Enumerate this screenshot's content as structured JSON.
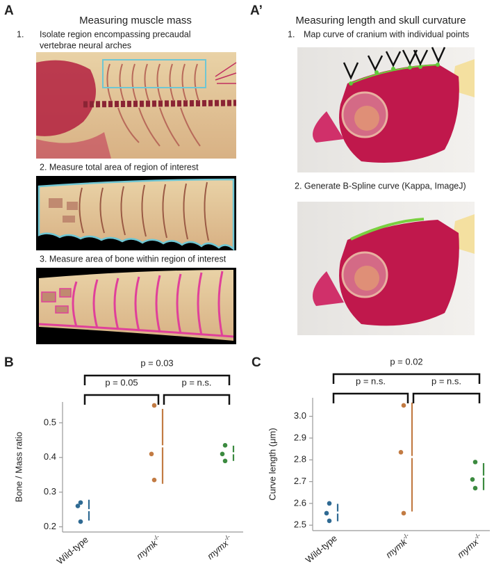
{
  "panels": [
    {
      "label": "A",
      "title": "Measuring muscle mass",
      "steps": [
        {
          "number": "1.",
          "lines": [
            "Isolate region encompassing precaudal",
            "vertebrae neural arches"
          ]
        },
        {
          "lines": [
            "2. Measure total area of region of interest"
          ]
        },
        {
          "lines": [
            "3. Measure area of bone within region of interest"
          ]
        }
      ]
    },
    {
      "label": "A’",
      "title": "Measuring length and skull curvature",
      "steps": [
        {
          "number": "1.",
          "lines": [
            "Map curve of cranium with individual points"
          ]
        },
        {
          "lines": [
            "2. Generate B-Spline curve (Kappa, ImageJ)"
          ]
        }
      ]
    },
    {
      "label": "B"
    },
    {
      "label": "C"
    }
  ],
  "chart_data": [
    {
      "type": "dot",
      "ylabel": "Bone / Mass ratio",
      "categories": [
        "Wild-type",
        "mymk",
        "mymx"
      ],
      "superscripts": {
        "1": "-/-",
        "2": "-/-"
      },
      "colors": [
        "#2f6a93",
        "#c27b43",
        "#3b8a3f"
      ],
      "values": [
        [
          0.27,
          0.26,
          0.215
        ],
        [
          0.55,
          0.41,
          0.335
        ],
        [
          0.435,
          0.41,
          0.39
        ]
      ],
      "means": [
        0.248,
        0.432,
        0.412
      ],
      "sds": [
        0.03,
        0.108,
        0.022
      ],
      "ylim": [
        0.185,
        0.56
      ],
      "yticks": [
        0.2,
        0.3,
        0.4,
        0.5
      ],
      "comparisons": [
        {
          "label": "p = 0.03",
          "groups": [
            0,
            2
          ]
        },
        {
          "label": "p = 0.05",
          "groups": [
            0,
            1
          ]
        },
        {
          "label": "p = n.s.",
          "groups": [
            1,
            2
          ]
        }
      ]
    },
    {
      "type": "dot",
      "ylabel": "Curve length (μm)",
      "categories": [
        "Wild-type",
        "mymk",
        "mymx"
      ],
      "superscripts": {
        "1": "-/-",
        "2": "-/-"
      },
      "colors": [
        "#2f6a93",
        "#c27b43",
        "#3b8a3f"
      ],
      "values": [
        [
          2.6,
          2.555,
          2.52
        ],
        [
          3.05,
          2.835,
          2.555
        ],
        [
          2.79,
          2.71,
          2.67
        ]
      ],
      "means": [
        2.558,
        2.813,
        2.723
      ],
      "sds": [
        0.04,
        0.25,
        0.062
      ],
      "ylim": [
        2.475,
        3.085
      ],
      "yticks": [
        2.5,
        2.6,
        2.7,
        2.8,
        2.9,
        {
          "value": 3,
          "label": "3.0"
        }
      ],
      "comparisons": [
        {
          "label": "p = 0.02",
          "groups": [
            0,
            2
          ]
        },
        {
          "label": "p = n.s.",
          "groups": [
            0,
            1
          ]
        },
        {
          "label": "p = n.s.",
          "groups": [
            1,
            2
          ]
        }
      ]
    }
  ]
}
